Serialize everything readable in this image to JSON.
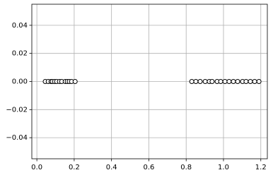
{
  "chart_data": {
    "type": "scatter",
    "x": [
      0.045,
      0.061,
      0.076,
      0.083,
      0.095,
      0.106,
      0.121,
      0.133,
      0.152,
      0.163,
      0.174,
      0.186,
      0.205,
      0.83,
      0.852,
      0.875,
      0.902,
      0.924,
      0.939,
      0.966,
      0.985,
      1.008,
      1.03,
      1.053,
      1.076,
      1.102,
      1.121,
      1.144,
      1.167,
      1.19
    ],
    "values": [
      0,
      0,
      0,
      0,
      0,
      0,
      0,
      0,
      0,
      0,
      0,
      0,
      0,
      0,
      0,
      0,
      0,
      0,
      0,
      0,
      0,
      0,
      0,
      0,
      0,
      0,
      0,
      0,
      0,
      0
    ],
    "color": "#000000",
    "xlim": [
      -0.027,
      1.235
    ],
    "ylim": [
      -0.055,
      0.055
    ],
    "xticks": [
      {
        "value": 0,
        "label": "0.0"
      },
      0.2,
      0.4,
      0.6,
      0.8,
      {
        "value": 1,
        "label": "1.0"
      },
      1.2
    ],
    "yticks": [
      {
        "value": -0.04,
        "label": "−0.04"
      },
      {
        "value": -0.02,
        "label": "−0.02"
      },
      {
        "value": 0,
        "label": "0.00"
      },
      0.02,
      0.04
    ],
    "grid": true
  }
}
